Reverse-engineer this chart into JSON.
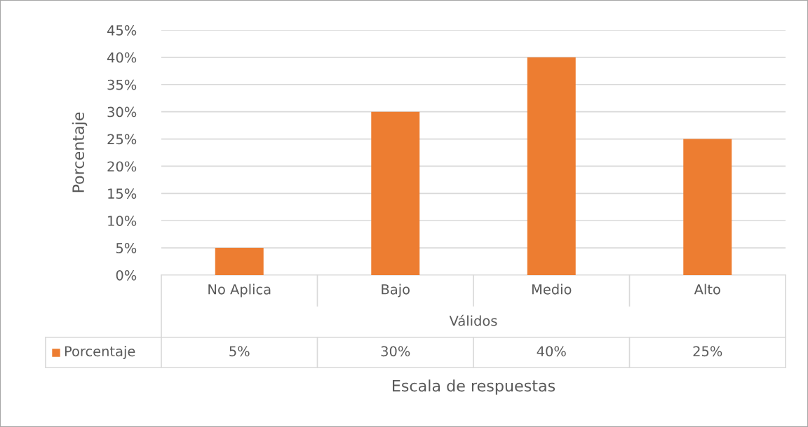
{
  "chart_data": {
    "type": "bar",
    "categories": [
      "No Aplica",
      "Bajo",
      "Medio",
      "Alto"
    ],
    "series": [
      {
        "name": "Porcentaje",
        "color": "#ed7d31",
        "values": [
          5,
          30,
          40,
          25
        ],
        "value_labels": [
          "5%",
          "30%",
          "40%",
          "25%"
        ]
      }
    ],
    "ylabel": "Porcentaje",
    "annotations": [
      "Válidos",
      "Escala de respuestas"
    ],
    "ylim": [
      0,
      45
    ],
    "yticks": [
      {
        "value": 0,
        "label": "0%"
      },
      {
        "value": 5,
        "label": "5%"
      },
      {
        "value": 10,
        "label": "10%"
      },
      {
        "value": 15,
        "label": "15%"
      },
      {
        "value": 20,
        "label": "20%"
      },
      {
        "value": 25,
        "label": "25%"
      },
      {
        "value": 30,
        "label": "30%"
      },
      {
        "value": 35,
        "label": "35%"
      },
      {
        "value": 40,
        "label": "40%"
      },
      {
        "value": 45,
        "label": "45%"
      }
    ],
    "grid": "y",
    "legend": "bottom"
  }
}
